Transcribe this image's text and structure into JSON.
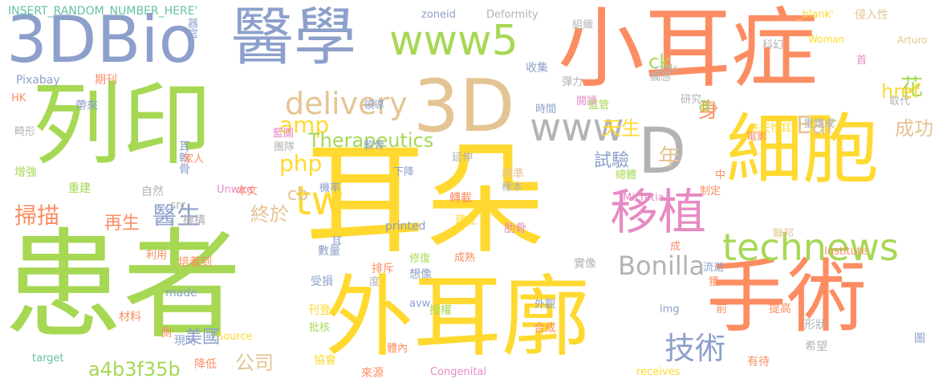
{
  "palette": {
    "green": "#a6d854",
    "orange": "#fc8d62",
    "blue": "#8da0cb",
    "yellow": "#ffd92f",
    "tan": "#e5c494",
    "gray": "#b3b3b3",
    "pink": "#e78ac3",
    "teal": "#66c2a5"
  },
  "words": [
    {
      "text": "耳朵",
      "color": "yellow"
    },
    {
      "text": "患者",
      "color": "green"
    },
    {
      "text": "列印",
      "color": "green"
    },
    {
      "text": "外耳廓",
      "color": "yellow"
    },
    {
      "text": "小耳症",
      "color": "orange"
    },
    {
      "text": "手術",
      "color": "orange"
    },
    {
      "text": "細胞",
      "color": "yellow"
    },
    {
      "text": "3D",
      "color": "tan"
    },
    {
      "text": "3DBio",
      "color": "blue"
    },
    {
      "text": "醫學",
      "color": "blue"
    },
    {
      "text": "www5",
      "color": "green"
    },
    {
      "text": "www",
      "color": "gray"
    },
    {
      "text": "D",
      "color": "gray"
    },
    {
      "text": "移植",
      "color": "pink"
    },
    {
      "text": "technews",
      "color": "green"
    },
    {
      "text": "delivery",
      "color": "tan"
    },
    {
      "text": "amp",
      "color": "yellow"
    },
    {
      "text": "php",
      "color": "yellow"
    },
    {
      "text": "tw",
      "color": "yellow"
    },
    {
      "text": "Bonilla",
      "color": "gray"
    },
    {
      "text": "Ear",
      "color": "tan"
    },
    {
      "text": "技術",
      "color": "blue"
    },
    {
      "text": "掃描",
      "color": "orange"
    },
    {
      "text": "醫生",
      "color": "blue"
    },
    {
      "text": "再生",
      "color": "orange"
    },
    {
      "text": "終於",
      "color": "tan"
    },
    {
      "text": "a4b3f35b",
      "color": "green"
    },
    {
      "text": "公司",
      "color": "tan"
    },
    {
      "text": "美國",
      "color": "blue"
    },
    {
      "text": "Therapeutics",
      "color": "green"
    },
    {
      "text": "ck",
      "color": "green"
    },
    {
      "text": "花",
      "color": "green"
    },
    {
      "text": "href",
      "color": "yellow"
    },
    {
      "text": "成功",
      "color": "tan"
    },
    {
      "text": "天生",
      "color": "yellow"
    },
    {
      "text": "身",
      "color": "orange"
    },
    {
      "text": "n",
      "color": "tan"
    },
    {
      "text": "a",
      "color": "green"
    },
    {
      "text": "年",
      "color": "tan"
    },
    {
      "text": "試驗",
      "color": "blue"
    },
    {
      "text": "cb",
      "color": "tan"
    },
    {
      "text": "INSERT_RANDOM_NUMBER_HERE'",
      "color": "teal"
    },
    {
      "text": "zoneid",
      "color": "blue"
    },
    {
      "text": "Deformity",
      "color": "gray"
    },
    {
      "text": "_blank'",
      "color": "yellow"
    },
    {
      "text": "侵入性",
      "color": "tan"
    },
    {
      "text": "Woman",
      "color": "yellow"
    },
    {
      "text": "Arturo",
      "color": "tan"
    },
    {
      "text": "器官",
      "color": "blue"
    },
    {
      "text": "組織",
      "color": "gray"
    },
    {
      "text": "科幻",
      "color": "gray"
    },
    {
      "text": "觸感",
      "color": "gray"
    },
    {
      "text": "cells",
      "color": "gray"
    },
    {
      "text": "Pixabay",
      "color": "blue"
    },
    {
      "text": "期刊",
      "color": "orange"
    },
    {
      "text": "收集",
      "color": "blue"
    },
    {
      "text": "彈力",
      "color": "gray"
    },
    {
      "text": "首",
      "color": "pink"
    },
    {
      "text": "時間",
      "color": "blue"
    },
    {
      "text": "閱讀",
      "color": "pink"
    },
    {
      "text": "領導",
      "color": "blue"
    },
    {
      "text": "HK",
      "color": "orange"
    },
    {
      "text": "帶來",
      "color": "blue"
    },
    {
      "text": "監管",
      "color": "green"
    },
    {
      "text": "研究",
      "color": "gray"
    },
    {
      "text": "取代",
      "color": "gray"
    },
    {
      "text": "畸形",
      "color": "gray"
    },
    {
      "text": "藍圖",
      "color": "pink"
    },
    {
      "text": "團隊",
      "color": "gray"
    },
    {
      "text": "重建成",
      "color": "gray"
    },
    {
      "text": "電影",
      "color": "orange"
    },
    {
      "text": "先天性耳",
      "color": "yellow"
    },
    {
      "text": "耳軟骨",
      "color": "blue"
    },
    {
      "text": "軟骨",
      "color": "blue"
    },
    {
      "text": "家人",
      "color": "orange"
    },
    {
      "text": "下降",
      "color": "blue"
    },
    {
      "text": "延伸",
      "color": "gray"
    },
    {
      "text": "增強",
      "color": "green"
    },
    {
      "text": "標準",
      "color": "tan"
    },
    {
      "text": "總體",
      "color": "green"
    },
    {
      "text": "中",
      "color": "orange"
    },
    {
      "text": "重建",
      "color": "green"
    },
    {
      "text": "自然",
      "color": "gray"
    },
    {
      "text": "Unwire",
      "color": "pink"
    },
    {
      "text": "src",
      "color": "gray"
    },
    {
      "text": "樣本",
      "color": "gray"
    },
    {
      "text": "機率",
      "color": "blue"
    },
    {
      "text": "本文",
      "color": "orange"
    },
    {
      "text": "Microtia",
      "color": "pink"
    },
    {
      "text": "制定",
      "color": "orange"
    },
    {
      "text": "機構",
      "color": "gray"
    },
    {
      "text": "轉載",
      "color": "orange"
    },
    {
      "text": "建立",
      "color": "yellow"
    },
    {
      "text": "耳",
      "color": "blue"
    },
    {
      "text": "聯邦",
      "color": "tan"
    },
    {
      "text": "printed",
      "color": "blue"
    },
    {
      "text": "肋骨",
      "color": "pink"
    },
    {
      "text": "Institute",
      "color": "orange"
    },
    {
      "text": "利用",
      "color": "orange"
    },
    {
      "text": "數量",
      "color": "blue"
    },
    {
      "text": "排斥",
      "color": "orange"
    },
    {
      "text": "修復",
      "color": "green"
    },
    {
      "text": "成熟",
      "color": "orange"
    },
    {
      "text": "實像",
      "color": "gray"
    },
    {
      "text": "成",
      "color": "orange"
    },
    {
      "text": "流逝",
      "color": "blue"
    },
    {
      "text": "培養到",
      "color": "orange"
    },
    {
      "text": "受損",
      "color": "blue"
    },
    {
      "text": "度",
      "color": "gray"
    },
    {
      "text": "想像",
      "color": "blue"
    },
    {
      "text": "獲",
      "color": "orange"
    },
    {
      "text": "made",
      "color": "blue"
    },
    {
      "text": "avw",
      "color": "blue"
    },
    {
      "text": "刊登",
      "color": "yellow"
    },
    {
      "text": "授權",
      "color": "green"
    },
    {
      "text": "前",
      "color": "orange"
    },
    {
      "text": "提高",
      "color": "orange"
    },
    {
      "text": "材料",
      "color": "orange"
    },
    {
      "text": "外觀",
      "color": "blue"
    },
    {
      "text": "img",
      "color": "blue"
    },
    {
      "text": "側",
      "color": "orange"
    },
    {
      "text": "現時",
      "color": "blue"
    },
    {
      "text": "Source",
      "color": "yellow"
    },
    {
      "text": "批核",
      "color": "green"
    },
    {
      "text": "合成",
      "color": "orange"
    },
    {
      "text": "形狀",
      "color": "gray"
    },
    {
      "text": "希望",
      "color": "gray"
    },
    {
      "text": "降低",
      "color": "orange"
    },
    {
      "text": "體內",
      "color": "orange"
    },
    {
      "text": "有待",
      "color": "orange"
    },
    {
      "text": "圖",
      "color": "blue"
    },
    {
      "text": "target",
      "color": "teal"
    },
    {
      "text": "協會",
      "color": "yellow"
    },
    {
      "text": "來源",
      "color": "orange"
    },
    {
      "text": "Congenital",
      "color": "pink"
    },
    {
      "text": "receives",
      "color": "yellow"
    }
  ]
}
